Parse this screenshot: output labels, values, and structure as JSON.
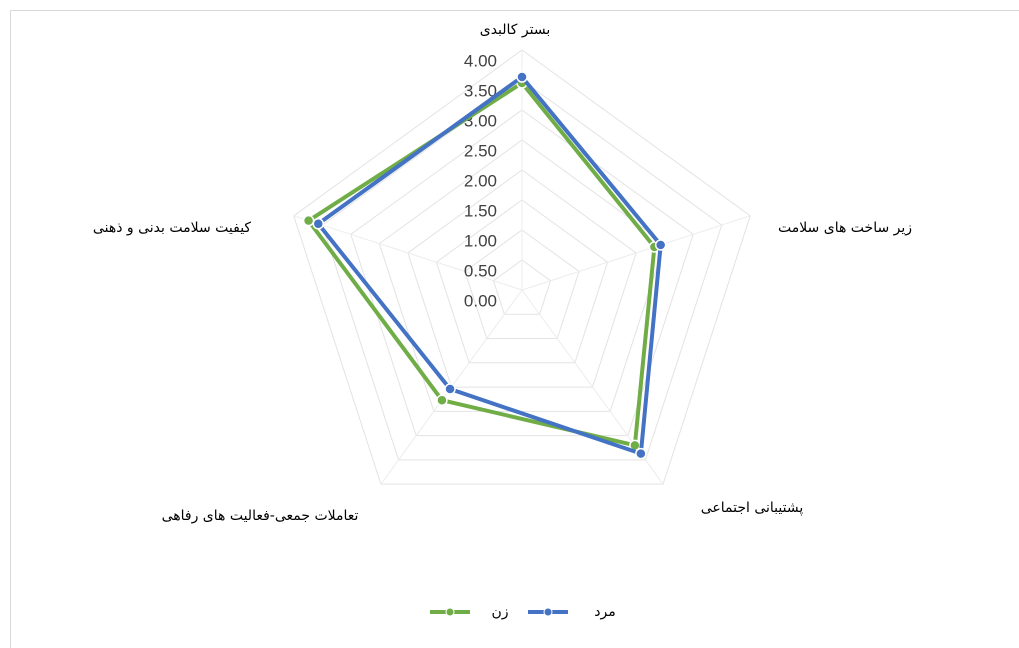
{
  "chart_data": {
    "type": "radar",
    "categories": [
      "بستر کالبدی",
      "زیر ساخت های سلامت",
      "پشتیبانی اجتماعی",
      "تعاملات جمعی-فعالیت های رفاهی",
      "کیفیت سلامت بدنی و ذهنی"
    ],
    "series": [
      {
        "name": "زن",
        "color": "#70ad47",
        "values": [
          3.45,
          2.32,
          3.2,
          2.27,
          3.74
        ]
      },
      {
        "name": "مرد",
        "color": "#4472c4",
        "values": [
          3.55,
          2.43,
          3.37,
          2.04,
          3.57
        ]
      }
    ],
    "ylim": [
      0,
      4
    ],
    "yticks": [
      {
        "value": 0,
        "label": "0.00"
      },
      {
        "value": 0.5,
        "label": "0.50"
      },
      {
        "value": 1,
        "label": "1.00"
      },
      {
        "value": 1.5,
        "label": "1.50"
      },
      {
        "value": 2,
        "label": "2.00"
      },
      {
        "value": 2.5,
        "label": "2.50"
      },
      {
        "value": 3,
        "label": "3.00"
      },
      {
        "value": 3.5,
        "label": "3.50"
      },
      {
        "value": 4,
        "label": "4.00"
      }
    ],
    "grid": true,
    "legend": "bottom"
  }
}
